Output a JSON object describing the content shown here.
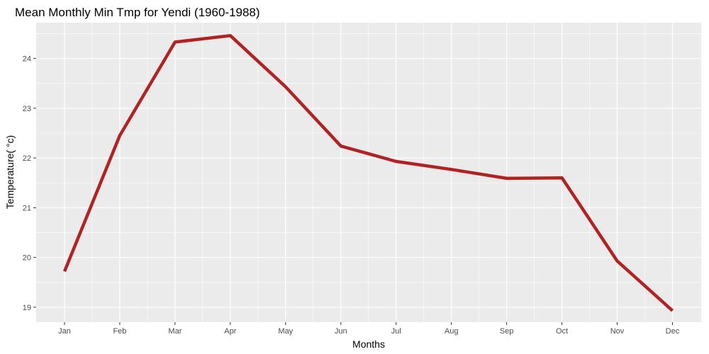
{
  "chart_data": {
    "type": "line",
    "title": "Mean Monthly Min Tmp for Yendi (1960-1988)",
    "xlabel": "Months",
    "ylabel": "Temperature( °c)",
    "categories": [
      "Jan",
      "Feb",
      "Mar",
      "Apr",
      "May",
      "Jun",
      "Jul",
      "Aug",
      "Sep",
      "Oct",
      "Nov",
      "Dec"
    ],
    "series": [
      {
        "values": [
          19.72,
          22.45,
          24.33,
          24.46,
          23.43,
          22.24,
          21.93,
          21.77,
          21.59,
          21.6,
          19.93,
          18.93
        ]
      }
    ],
    "yticks": [
      19,
      20,
      21,
      22,
      23,
      24
    ],
    "ylim": [
      18.7,
      24.72
    ],
    "grid": true,
    "legend": "none",
    "colors": {
      "panel": "#ebebeb",
      "grid": "#ffffff",
      "line": "#b22222",
      "tick_text": "#4d4d4d",
      "tick_mark": "#333333"
    }
  }
}
